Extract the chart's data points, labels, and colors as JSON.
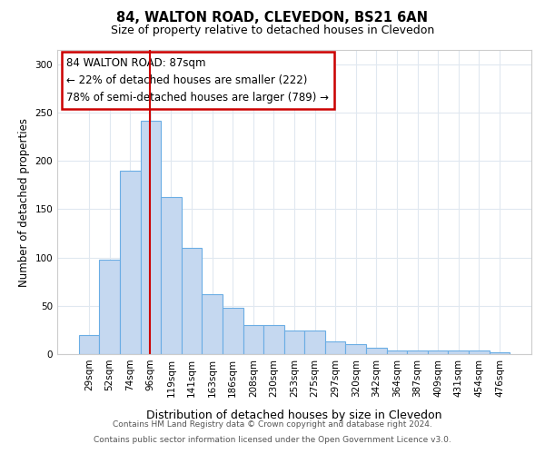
{
  "title1": "84, WALTON ROAD, CLEVEDON, BS21 6AN",
  "title2": "Size of property relative to detached houses in Clevedon",
  "xlabel": "Distribution of detached houses by size in Clevedon",
  "ylabel": "Number of detached properties",
  "categories": [
    "29sqm",
    "52sqm",
    "74sqm",
    "96sqm",
    "119sqm",
    "141sqm",
    "163sqm",
    "186sqm",
    "208sqm",
    "230sqm",
    "253sqm",
    "275sqm",
    "297sqm",
    "320sqm",
    "342sqm",
    "364sqm",
    "387sqm",
    "409sqm",
    "431sqm",
    "454sqm",
    "476sqm"
  ],
  "values": [
    20,
    98,
    190,
    242,
    163,
    110,
    62,
    48,
    30,
    30,
    24,
    24,
    13,
    10,
    7,
    4,
    4,
    4,
    4,
    4,
    2
  ],
  "bar_color": "#c5d8f0",
  "bar_edge_color": "#6aade4",
  "vline_x": 2.97,
  "vline_color": "#cc0000",
  "annotation_text": "84 WALTON ROAD: 87sqm\n← 22% of detached houses are smaller (222)\n78% of semi-detached houses are larger (789) →",
  "annotation_box_color": "white",
  "annotation_box_edge": "#cc0000",
  "ylim": [
    0,
    315
  ],
  "yticks": [
    0,
    50,
    100,
    150,
    200,
    250,
    300
  ],
  "footer1": "Contains HM Land Registry data © Crown copyright and database right 2024.",
  "footer2": "Contains public sector information licensed under the Open Government Licence v3.0.",
  "background_color": "#ffffff",
  "plot_bg_color": "#ffffff",
  "grid_color": "#e0e8f0"
}
